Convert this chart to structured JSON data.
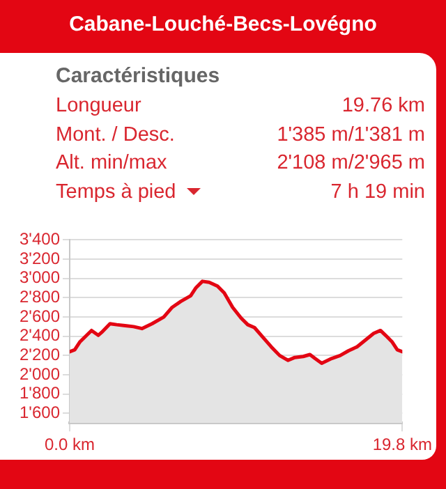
{
  "chart_data": {
    "type": "area",
    "title": "Cabane-Louché-Becs-Lovégno",
    "subtitle": "Caractéristiques",
    "annotations": [
      "Longueur",
      "19.76 km",
      "Mont. / Desc.",
      "1'385 m/1'381 m",
      "Alt. min/max",
      "2'108 m/2'965 m",
      "Temps à pied",
      "7 h 19 min"
    ],
    "x": [
      0,
      0.3,
      0.6,
      1.3,
      1.7,
      1.9,
      2.4,
      2.8,
      3.3,
      3.8,
      4.3,
      4.9,
      5.6,
      6.1,
      6.6,
      7.2,
      7.5,
      7.9,
      8.3,
      8.8,
      9.2,
      9.7,
      10.2,
      10.6,
      11.0,
      11.5,
      12.0,
      12.5,
      13.0,
      13.4,
      13.9,
      14.3,
      14.6,
      15.0,
      15.6,
      16.1,
      16.6,
      17.1,
      17.6,
      18.1,
      18.5,
      18.8,
      19.2,
      19.5,
      19.8
    ],
    "series": [
      {
        "color": "#e30613",
        "values": [
          2240,
          2260,
          2340,
          2460,
          2410,
          2440,
          2530,
          2520,
          2510,
          2500,
          2480,
          2530,
          2600,
          2700,
          2760,
          2820,
          2900,
          2970,
          2960,
          2920,
          2850,
          2700,
          2590,
          2520,
          2490,
          2390,
          2290,
          2200,
          2150,
          2180,
          2190,
          2210,
          2170,
          2120,
          2170,
          2200,
          2250,
          2290,
          2360,
          2430,
          2460,
          2410,
          2340,
          2260,
          2240
        ]
      }
    ],
    "xlim": [
      0,
      19.8
    ],
    "xticks": [
      {
        "value": 0,
        "label": "0.0 km"
      },
      {
        "value": 19.8,
        "label": "19.8 km"
      }
    ],
    "ylim": [
      1500,
      3400
    ],
    "yticks": [
      {
        "value": 1600,
        "label": "1'600"
      },
      {
        "value": 1800,
        "label": "1'800"
      },
      {
        "value": 2000,
        "label": "2'000"
      },
      {
        "value": 2200,
        "label": "2'200"
      },
      {
        "value": 2400,
        "label": "2'400"
      },
      {
        "value": 2600,
        "label": "2'600"
      },
      {
        "value": 2800,
        "label": "2'800"
      },
      {
        "value": 3000,
        "label": "3'000"
      },
      {
        "value": 3200,
        "label": "3'200"
      },
      {
        "value": 3400,
        "label": "3'400"
      }
    ],
    "grid": "y",
    "legend": false,
    "marker": "none",
    "line_style": "solid"
  }
}
